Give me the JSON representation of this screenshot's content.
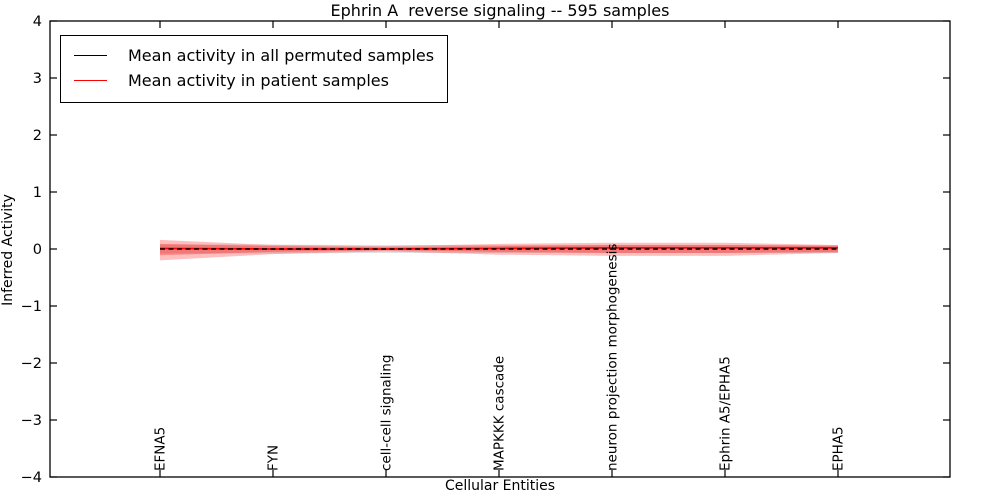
{
  "chart_data": {
    "type": "line",
    "title": "Ephrin A  reverse signaling -- 595 samples",
    "xlabel": "Cellular Entities",
    "ylabel": "Inferred Activity",
    "categories": [
      "EFNA5",
      "FYN",
      "cell-cell signaling",
      "MAPKKK cascade",
      "neuron projection morphogenesis",
      "Ephrin A5/EPHA5",
      "EPHA5"
    ],
    "ylim": [
      -4,
      4
    ],
    "y_ticks": [
      4,
      3,
      2,
      1,
      0,
      -1,
      -2,
      -3,
      -4
    ],
    "grid": false,
    "legend_position": "upper left",
    "series": [
      {
        "name": "Mean activity in all permuted samples",
        "color": "#000000",
        "linestyle": "dashed",
        "values": [
          0,
          0,
          0,
          0,
          0,
          0,
          0
        ]
      },
      {
        "name": "Mean activity in patient samples",
        "color": "#ff0000",
        "linestyle": "solid",
        "values": [
          0.01,
          0.0,
          0.0,
          0.01,
          0.02,
          0.02,
          0.02
        ]
      }
    ],
    "bands": [
      {
        "name": "permuted-std-band",
        "color": "#000000",
        "opacity": 0.12,
        "upper": [
          0.08,
          0.08,
          0.07,
          0.07,
          0.07,
          0.07,
          0.07
        ],
        "lower": [
          -0.08,
          -0.08,
          -0.07,
          -0.07,
          -0.07,
          -0.07,
          -0.07
        ]
      },
      {
        "name": "patient-std-outer-band",
        "color": "#ff0000",
        "opacity": 0.25,
        "upper": [
          0.16,
          0.07,
          0.05,
          0.09,
          0.11,
          0.11,
          0.07
        ],
        "lower": [
          -0.2,
          -0.09,
          -0.04,
          -0.1,
          -0.12,
          -0.12,
          -0.07
        ]
      },
      {
        "name": "patient-std-inner-band",
        "color": "#ff0000",
        "opacity": 0.28,
        "upper": [
          0.09,
          0.05,
          0.03,
          0.05,
          0.07,
          0.07,
          0.05
        ],
        "lower": [
          -0.11,
          -0.05,
          -0.02,
          -0.05,
          -0.07,
          -0.07,
          -0.05
        ]
      }
    ]
  }
}
